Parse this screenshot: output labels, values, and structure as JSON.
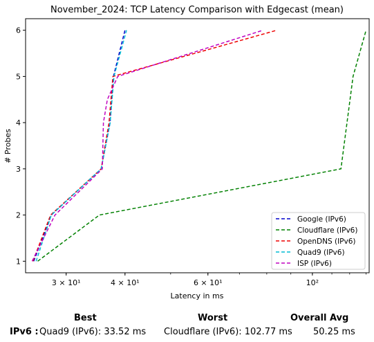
{
  "chart_data": {
    "type": "line",
    "title": "November_2024: TCP Latency Comparison with Edgecast (mean)",
    "xlabel": "Latency in ms",
    "ylabel": "# Probes",
    "xscale": "log",
    "xlim": [
      24.6,
      132
    ],
    "ylim": [
      0.75,
      6.25
    ],
    "x_ticks": [
      {
        "value": 30,
        "label": "3 × 10¹"
      },
      {
        "value": 40,
        "label": "4 × 10¹"
      },
      {
        "value": 60,
        "label": "6 × 10¹"
      },
      {
        "value": 100,
        "label": "10²"
      }
    ],
    "y_ticks": [
      1,
      2,
      3,
      4,
      5,
      6
    ],
    "legend_position": "lower-right",
    "line_style": "dashed",
    "series": [
      {
        "name": "Google (IPv6)",
        "color": "#0000cc",
        "x": [
          25.6,
          27.9,
          35.6,
          37.2,
          37.8,
          40.0
        ],
        "y": [
          1,
          2,
          3,
          4,
          5,
          6
        ]
      },
      {
        "name": "Cloudflare (IPv6)",
        "color": "#008000",
        "x": [
          26.1,
          35.3,
          115.0,
          122.0,
          130.0
        ],
        "y": [
          1,
          2,
          3,
          5,
          6
        ]
      },
      {
        "name": "OpenDNS (IPv6)",
        "color": "#ee0000",
        "x": [
          25.5,
          27.8,
          35.6,
          37.0,
          37.7,
          84.0
        ],
        "y": [
          1,
          2,
          3,
          4,
          5,
          6
        ]
      },
      {
        "name": "Quad9 (IPv6)",
        "color": "#00bcd4",
        "x": [
          25.9,
          27.9,
          35.6,
          37.2,
          37.9,
          40.3
        ],
        "y": [
          1,
          2,
          3,
          4,
          5,
          6
        ]
      },
      {
        "name": "ISP (IPv6)",
        "color": "#c000c0",
        "x": [
          25.4,
          28.4,
          35.8,
          36.0,
          36.7,
          38.6,
          78.5
        ],
        "y": [
          1,
          2,
          3,
          4,
          4.5,
          5,
          6
        ]
      }
    ]
  },
  "summary": {
    "headers": {
      "best": "Best",
      "worst": "Worst",
      "avg": "Overall Avg"
    },
    "row_label": "IPv6 :",
    "best": "Quad9 (IPv6): 33.52 ms",
    "worst": "Cloudflare (IPv6): 102.77 ms",
    "avg": "50.25 ms"
  }
}
